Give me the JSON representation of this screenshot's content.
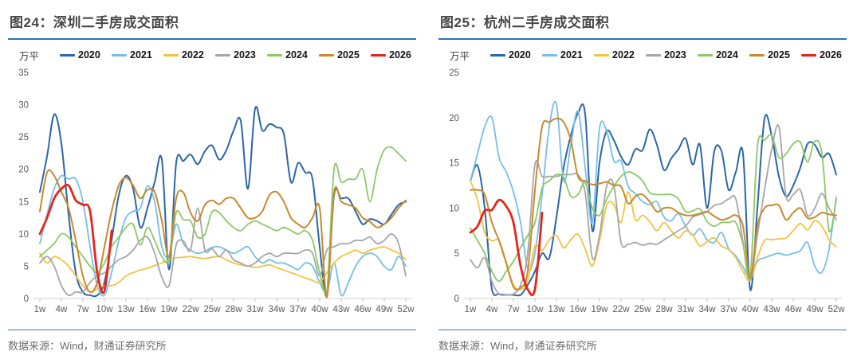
{
  "chart_data": [
    {
      "type": "line",
      "title": "图24：深圳二手房成交面积",
      "unit": "万平",
      "source": "数据来源：Wind，财通证券研究所",
      "x_unit": "week",
      "x_tick_labels": [
        "1w",
        "4w",
        "7w",
        "10w",
        "13w",
        "16w",
        "19w",
        "22w",
        "25w",
        "28w",
        "31w",
        "34w",
        "37w",
        "40w",
        "43w",
        "46w",
        "49w",
        "52w"
      ],
      "ylim": [
        0,
        35
      ],
      "y_step": 5,
      "grid": false,
      "legend_position": "top",
      "accent_color": "#2e75b6",
      "series": [
        {
          "name": "2020",
          "color": "#2b66a8",
          "stroke_width": 2,
          "values": [
            16.5,
            22,
            28.5,
            24,
            13,
            4,
            1,
            0.5,
            0.5,
            2.5,
            9,
            16,
            19,
            17,
            11,
            14,
            18,
            21.5,
            4.5,
            21,
            21.3,
            22.3,
            20.8,
            22.8,
            23.7,
            21.5,
            23,
            26,
            27.5,
            17,
            29.4,
            26,
            27,
            26.5,
            25.5,
            18,
            21,
            19.5,
            18.5,
            8,
            0.3,
            16,
            15.5,
            15.5,
            13.5,
            11.5,
            12.3,
            12,
            11.5,
            13,
            14.5,
            15
          ]
        },
        {
          "name": "2021",
          "color": "#74bfe8",
          "stroke_width": 1.8,
          "values": [
            8.5,
            13,
            17,
            19,
            18.5,
            18.5,
            15,
            8,
            2,
            0.5,
            4,
            9,
            12.5,
            13.5,
            14,
            17.4,
            15,
            8,
            6.5,
            11.5,
            8.5,
            7.5,
            7,
            7.3,
            7.9,
            8,
            7.5,
            7,
            7.5,
            8,
            6.5,
            5.5,
            6,
            5.5,
            5.5,
            5,
            4.5,
            5.5,
            5,
            2.5,
            1,
            5.5,
            0.5,
            2.5,
            5,
            6.5,
            7,
            6.5,
            5,
            4.5,
            6.5,
            5
          ]
        },
        {
          "name": "2022",
          "color": "#f2c341",
          "stroke_width": 1.8,
          "values": [
            7,
            5.5,
            6.5,
            6,
            5,
            3.5,
            2,
            1,
            1.5,
            2,
            2,
            2.5,
            3.5,
            4,
            4.4,
            4.7,
            5.1,
            5.5,
            6,
            6.3,
            6.4,
            6.5,
            6.3,
            6.2,
            6.4,
            6.5,
            6,
            5.5,
            5.2,
            5,
            4.8,
            5,
            5.2,
            4.8,
            4.4,
            4,
            3.6,
            3.2,
            2.8,
            2.5,
            4,
            5.5,
            6.5,
            7,
            7.5,
            7,
            7.5,
            7.8,
            8,
            7.5,
            7,
            6
          ]
        },
        {
          "name": "2023",
          "color": "#a6a6a6",
          "stroke_width": 1.8,
          "values": [
            5.5,
            6.5,
            5,
            2,
            0.5,
            1,
            1,
            2.5,
            3.5,
            4,
            5,
            6,
            6.5,
            7.5,
            9,
            9.5,
            7,
            3.3,
            2,
            8.3,
            8.9,
            7.5,
            14,
            7.5,
            7.7,
            6.5,
            7.5,
            6,
            5.5,
            5,
            5.5,
            6.5,
            7,
            6.5,
            7,
            7,
            7,
            7.5,
            7,
            3.5,
            7.5,
            8,
            8.5,
            8.5,
            9,
            9,
            9.5,
            8.5,
            9,
            10,
            8.5,
            3.5
          ]
        },
        {
          "name": "2024",
          "color": "#8cc966",
          "stroke_width": 1.8,
          "values": [
            6.5,
            7.5,
            8.5,
            10,
            9.5,
            8,
            6.5,
            5,
            4,
            5.5,
            8,
            9.5,
            11,
            11.5,
            8.3,
            11,
            9,
            6.5,
            6,
            13.3,
            12.2,
            12,
            9.5,
            10,
            13.4,
            13.3,
            12,
            11,
            10.5,
            11.5,
            12,
            11.5,
            11,
            10.5,
            11,
            10.5,
            10,
            10.5,
            9,
            4,
            1,
            20,
            18,
            18.5,
            18.5,
            20,
            15,
            20,
            23,
            23.4,
            22.4,
            21.3
          ]
        },
        {
          "name": "2025",
          "color": "#c8892f",
          "stroke_width": 2,
          "values": [
            13.5,
            19.5,
            19,
            16.5,
            14,
            9,
            3.5,
            1,
            2.5,
            8,
            13.5,
            17.5,
            18.7,
            17.5,
            15.5,
            16.8,
            16.5,
            12,
            6.5,
            15.5,
            16.4,
            13.3,
            12,
            14.5,
            15.2,
            14.6,
            15.5,
            15.5,
            14,
            12.5,
            12.5,
            13.5,
            16,
            16.5,
            15,
            12.5,
            11.5,
            11,
            12.5,
            14,
            0.2,
            16.4,
            15,
            14.5,
            14,
            12.5,
            11.9,
            11,
            11.5,
            12.5,
            14,
            15.2
          ]
        },
        {
          "name": "2026",
          "color": "#e8231a",
          "stroke_width": 2.8,
          "values": [
            10,
            12.5,
            15.5,
            17,
            17.5,
            15.2,
            14.5,
            13.5,
            4,
            1.2,
            10.5
          ]
        }
      ]
    },
    {
      "type": "line",
      "title": "图25：杭州二手房成交面积",
      "unit": "万平",
      "source": "数据来源：Wind，财通证券研究所",
      "x_unit": "week",
      "x_tick_labels": [
        "1w",
        "4w",
        "7w",
        "10w",
        "13w",
        "16w",
        "19w",
        "22w",
        "25w",
        "28w",
        "31w",
        "34w",
        "37w",
        "40w",
        "43w",
        "46w",
        "49w",
        "52w"
      ],
      "ylim": [
        0,
        25
      ],
      "y_step": 5,
      "grid": false,
      "legend_position": "top",
      "accent_color": "#2e75b6",
      "series": [
        {
          "name": "2020",
          "color": "#2b66a8",
          "stroke_width": 2,
          "values": [
            13,
            14.7,
            10,
            1,
            0.5,
            0.4,
            0.4,
            0.4,
            1.5,
            3,
            5,
            4.5,
            9,
            14.5,
            18,
            20.5,
            20.4,
            7.5,
            15,
            18.5,
            17.5,
            15.7,
            14.8,
            16.5,
            16.4,
            18.7,
            17,
            14.2,
            15.5,
            16.5,
            17.7,
            14.8,
            17,
            10,
            16.3,
            16.3,
            12,
            14,
            16,
            1,
            10,
            19.9,
            18,
            13.5,
            11.3,
            12.5,
            14.5,
            17.1,
            17,
            15.6,
            16,
            13.7
          ]
        },
        {
          "name": "2021",
          "color": "#74bfe8",
          "stroke_width": 1.8,
          "values": [
            13,
            16,
            19,
            20,
            15.6,
            14,
            11.8,
            8.4,
            3.3,
            5,
            11.5,
            19,
            21.5,
            13,
            17,
            20.7,
            14.5,
            8.4,
            18.8,
            18.5,
            15.2,
            15.2,
            12.4,
            11.6,
            10.7,
            10.4,
            10.7,
            9,
            8.6,
            9.4,
            8,
            7,
            7.7,
            6.5,
            6.2,
            7.3,
            5.5,
            4.7,
            3.5,
            2.3,
            4.1,
            4.5,
            4.8,
            5,
            4.8,
            5,
            5.3,
            6.2,
            3.6,
            2.9,
            5.5,
            11.2
          ]
        },
        {
          "name": "2022",
          "color": "#f2c341",
          "stroke_width": 1.8,
          "values": [
            13,
            10.9,
            7.3,
            6.4,
            6.4,
            4,
            1.5,
            1,
            2,
            5.8,
            5.3,
            6.5,
            7,
            5.6,
            6.5,
            7.1,
            5.5,
            3.6,
            6.4,
            10.3,
            10.4,
            8.4,
            11.8,
            8.7,
            9.2,
            8.5,
            7.5,
            8.4,
            7.5,
            6.7,
            7.5,
            7,
            5.8,
            6.3,
            6.7,
            5.8,
            5.4,
            4.5,
            3,
            2,
            4.5,
            6.4,
            6.5,
            6.6,
            6.7,
            7.5,
            8.3,
            7.6,
            8.6,
            8,
            6.5,
            5.7
          ]
        },
        {
          "name": "2023",
          "color": "#a6a6a6",
          "stroke_width": 1.8,
          "values": [
            4.3,
            3.4,
            4.5,
            1.9,
            0.5,
            0.4,
            0.5,
            1.5,
            5,
            14.8,
            13.5,
            13.5,
            13.5,
            13.7,
            13.7,
            13.7,
            11.7,
            4.5,
            7,
            12.4,
            12.5,
            6.2,
            6,
            6.2,
            5.9,
            6.1,
            6,
            6.5,
            7,
            7.5,
            8,
            9,
            9.3,
            9.6,
            10.3,
            10.5,
            11,
            11,
            6.2,
            2,
            7,
            12,
            16.5,
            19,
            11.3,
            11.5,
            12,
            9.2,
            10,
            11.6,
            10,
            8.7
          ]
        },
        {
          "name": "2024",
          "color": "#8cc966",
          "stroke_width": 1.8,
          "values": [
            7.8,
            6.4,
            5,
            3,
            1.9,
            3,
            4.1,
            5.6,
            7,
            8.4,
            12.2,
            13,
            13.7,
            13.4,
            11.3,
            11.5,
            12.8,
            10,
            9.2,
            11,
            12.4,
            13.5,
            14,
            13.7,
            13,
            11.7,
            11.5,
            11.5,
            11.5,
            11,
            9.6,
            9.7,
            9.9,
            8.5,
            8,
            8.4,
            8.4,
            8.4,
            6,
            2.5,
            16.7,
            17.5,
            18,
            15.6,
            16,
            17.1,
            17.3,
            15.1,
            17.4,
            16,
            7.5,
            11
          ]
        },
        {
          "name": "2025",
          "color": "#c8892f",
          "stroke_width": 2,
          "values": [
            12,
            12,
            11.5,
            8.4,
            6.4,
            3.9,
            1.3,
            1.2,
            3,
            12,
            19,
            19.5,
            19.9,
            19.5,
            17.5,
            13.5,
            13,
            12.6,
            12.7,
            12.9,
            12.5,
            12.4,
            10.5,
            11.3,
            11.5,
            10.7,
            9.6,
            10,
            10,
            9.5,
            9.2,
            9.2,
            9.4,
            9.6,
            9.1,
            8.7,
            8.9,
            9.2,
            8,
            2.3,
            8,
            10,
            10.3,
            10.3,
            8.7,
            9.5,
            10,
            8.9,
            9,
            9.5,
            9.3,
            9.2
          ]
        },
        {
          "name": "2026",
          "color": "#e8231a",
          "stroke_width": 2.8,
          "values": [
            7.3,
            8,
            9.7,
            9.8,
            10.9,
            10.2,
            8.4,
            3.6,
            1,
            1,
            9.5
          ]
        }
      ]
    }
  ]
}
